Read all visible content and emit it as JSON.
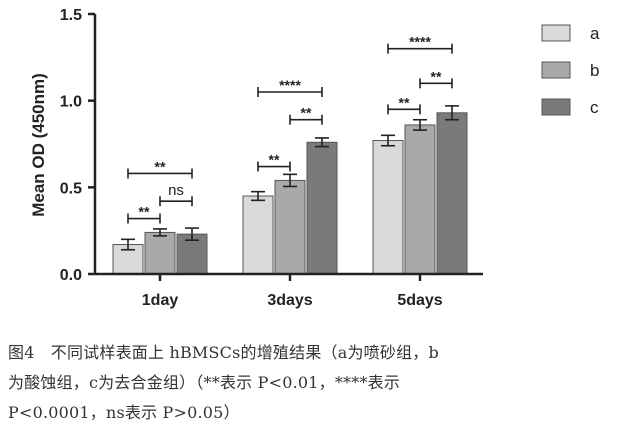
{
  "chart_data": {
    "type": "bar",
    "ylabel": "Mean OD (450nm)",
    "ylim": [
      0,
      1.5
    ],
    "yticks": [
      "0.0",
      "0.5",
      "1.0",
      "1.5"
    ],
    "categories": [
      "1day",
      "3days",
      "5days"
    ],
    "series": [
      {
        "name": "a",
        "color": "#d9d9d9",
        "values": [
          0.17,
          0.45,
          0.77
        ],
        "errors": [
          0.03,
          0.025,
          0.03
        ]
      },
      {
        "name": "b",
        "color": "#a9a9a9",
        "values": [
          0.24,
          0.54,
          0.86
        ],
        "errors": [
          0.02,
          0.035,
          0.03
        ]
      },
      {
        "name": "c",
        "color": "#7a7a7a",
        "values": [
          0.23,
          0.76,
          0.93
        ],
        "errors": [
          0.035,
          0.025,
          0.04
        ]
      }
    ],
    "legend_position": "top-right",
    "grid": false,
    "significance": [
      {
        "category": 0,
        "from": 0,
        "to": 1,
        "label": "**",
        "y": 0.32
      },
      {
        "category": 0,
        "from": 1,
        "to": 2,
        "label": "ns",
        "y": 0.42
      },
      {
        "category": 0,
        "from": 0,
        "to": 2,
        "label": "**",
        "y": 0.58
      },
      {
        "category": 1,
        "from": 0,
        "to": 1,
        "label": "**",
        "y": 0.62
      },
      {
        "category": 1,
        "from": 1,
        "to": 2,
        "label": "**",
        "y": 0.89
      },
      {
        "category": 1,
        "from": 0,
        "to": 2,
        "label": "****",
        "y": 1.05
      },
      {
        "category": 2,
        "from": 0,
        "to": 1,
        "label": "**",
        "y": 0.95
      },
      {
        "category": 2,
        "from": 1,
        "to": 2,
        "label": "**",
        "y": 1.1
      },
      {
        "category": 2,
        "from": 0,
        "to": 2,
        "label": "****",
        "y": 1.3
      }
    ]
  },
  "caption": {
    "lines": [
      "图4　不同试样表面上 hBMSCs的增殖结果（a为喷砂组，b",
      "为酸蚀组，c为去合金组）（**表示 P<0.01，****表示",
      "P<0.0001，ns表示 P>0.05）"
    ]
  }
}
